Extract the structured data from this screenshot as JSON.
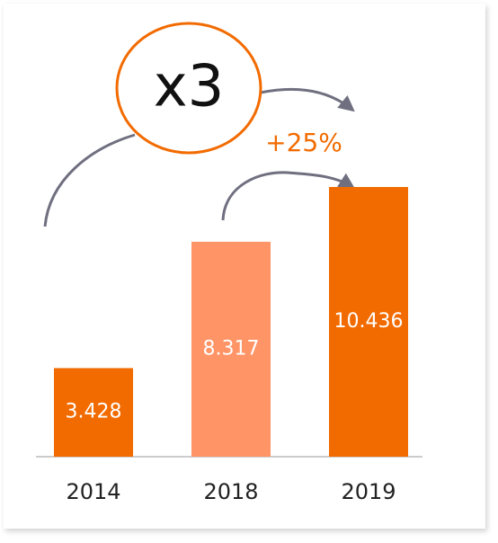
{
  "chart_data": {
    "type": "bar",
    "categories": [
      "2014",
      "2018",
      "2019"
    ],
    "values": [
      3428,
      8317,
      10436
    ],
    "value_labels": [
      "3.428",
      "8.317",
      "10.436"
    ],
    "colors": [
      "#f26b00",
      "#ff9466",
      "#f26b00"
    ],
    "annotations": [
      "x3",
      "+25%"
    ]
  }
}
